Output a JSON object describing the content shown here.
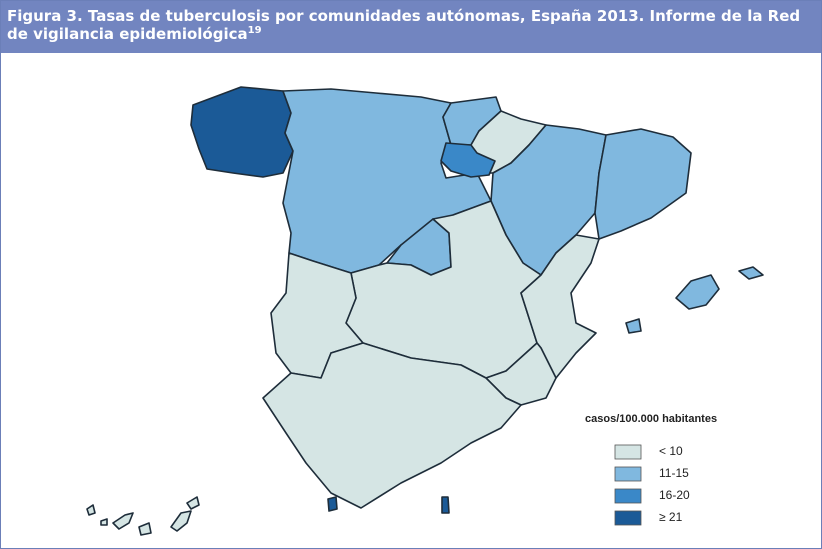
{
  "header": {
    "title": "Figura 3. Tasas de tuberculosis por comunidades autónomas, España 2013. Informe de la Red de vigilancia epidemiológica",
    "reference": "19"
  },
  "legend": {
    "title": "casos/100.000 habitantes",
    "items": [
      {
        "label": "< 10",
        "color": "#d5e5e4"
      },
      {
        "label": "11-15",
        "color": "#80b8df"
      },
      {
        "label": "16-20",
        "color": "#3a88c8"
      },
      {
        "label": "≥ 21",
        "color": "#1b5a97"
      }
    ]
  }
}
